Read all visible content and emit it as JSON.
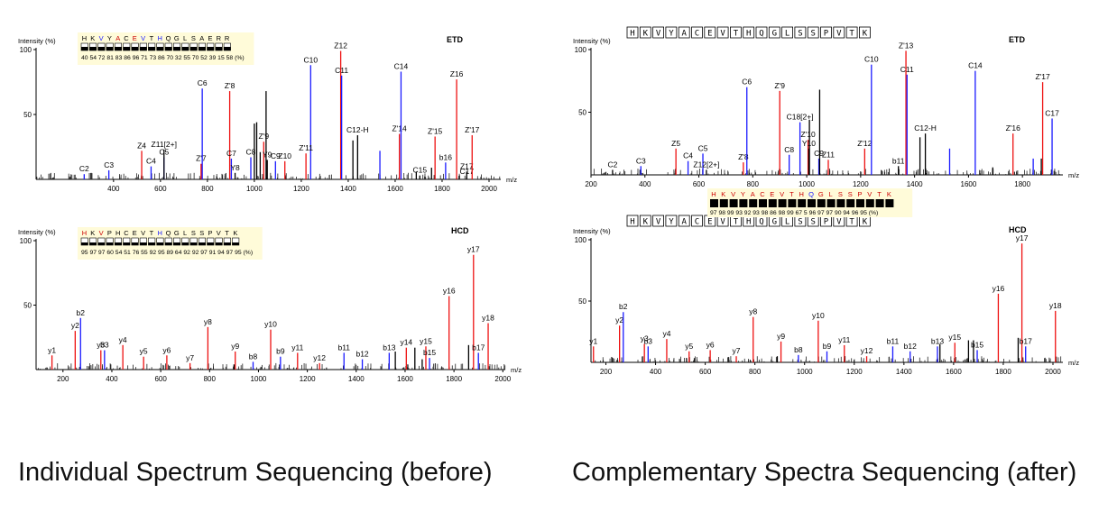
{
  "captions": {
    "left": "Individual Spectrum Sequencing (before)",
    "right": "Complementary Spectra Sequencing (after)"
  },
  "colors": {
    "c_ion": "#1a1aff",
    "z_ion": "#ee1111",
    "other": "#000000",
    "y_ion": "#ee1111",
    "b_ion": "#1a1aff"
  },
  "chart_data": [
    {
      "id": "before-etd",
      "type": "bar",
      "title": "ETD",
      "ylabel": "Intensity (%)",
      "xlabel": "m/z",
      "xlim": [
        70,
        2050
      ],
      "ylim": [
        0,
        100
      ],
      "xticks": [
        400,
        600,
        800,
        1000,
        1200,
        1400,
        1600,
        1800,
        2000
      ],
      "yticks": [
        50,
        100
      ],
      "sequence": {
        "residues": [
          "H",
          "K",
          "V",
          "Y",
          "A",
          "C",
          "E",
          "V",
          "T",
          "H",
          "Q",
          "G",
          "L",
          "S",
          "A",
          "E",
          "R",
          "R"
        ],
        "residue_colors": [
          "#000",
          "#000",
          "#1a1aff",
          "#000",
          "#cc0000",
          "#000",
          "#cc0000",
          "#1a1aff",
          "#000",
          "#1a1aff",
          "#000",
          "#000",
          "#000",
          "#000",
          "#000",
          "#000",
          "#000",
          "#000"
        ],
        "coverage": "40 54 72 81 83 86 96 71 73 86 70 32 55 70 52 39 15 58 (%)"
      },
      "peaks": [
        {
          "x": 275,
          "y": 4,
          "label": "C2",
          "kind": "c"
        },
        {
          "x": 380,
          "y": 7,
          "label": "C3",
          "kind": "c"
        },
        {
          "x": 520,
          "y": 22,
          "label": "Z4",
          "kind": "z"
        },
        {
          "x": 560,
          "y": 10,
          "label": "C4",
          "kind": "c"
        },
        {
          "x": 615,
          "y": 17,
          "label": "C5",
          "kind": "c"
        },
        {
          "x": 615,
          "y": 23,
          "label": "Z11[2+]",
          "kind": "o"
        },
        {
          "x": 773,
          "y": 12,
          "label": "Z'7",
          "kind": "z"
        },
        {
          "x": 778,
          "y": 70,
          "label": "C6",
          "kind": "c"
        },
        {
          "x": 895,
          "y": 68,
          "label": "Z'8",
          "kind": "z"
        },
        {
          "x": 902,
          "y": 16,
          "label": "C7",
          "kind": "c"
        },
        {
          "x": 918,
          "y": 5,
          "label": "Y8",
          "kind": "o"
        },
        {
          "x": 985,
          "y": 17,
          "label": "C8",
          "kind": "c"
        },
        {
          "x": 1040,
          "y": 29,
          "label": "Z'9",
          "kind": "z"
        },
        {
          "x": 1055,
          "y": 15,
          "label": "Y9",
          "kind": "o"
        },
        {
          "x": 1090,
          "y": 14,
          "label": "C9",
          "kind": "c"
        },
        {
          "x": 1130,
          "y": 14,
          "label": "Z10",
          "kind": "z"
        },
        {
          "x": 1240,
          "y": 88,
          "label": "C10",
          "kind": "c"
        },
        {
          "x": 1220,
          "y": 20,
          "label": "Z'11",
          "kind": "z"
        },
        {
          "x": 1368,
          "y": 99,
          "label": "Z12",
          "kind": "z"
        },
        {
          "x": 1372,
          "y": 80,
          "label": "C11",
          "kind": "c"
        },
        {
          "x": 1440,
          "y": 34,
          "label": "C12-H",
          "kind": "o"
        },
        {
          "x": 1535,
          "y": 22,
          "label": "",
          "kind": "c"
        },
        {
          "x": 1618,
          "y": 35,
          "label": "Z'14",
          "kind": "z"
        },
        {
          "x": 1625,
          "y": 83,
          "label": "C14",
          "kind": "c"
        },
        {
          "x": 1705,
          "y": 3,
          "label": "C15",
          "kind": "o"
        },
        {
          "x": 1770,
          "y": 33,
          "label": "Z'15",
          "kind": "z"
        },
        {
          "x": 1815,
          "y": 13,
          "label": "b16",
          "kind": "c"
        },
        {
          "x": 1862,
          "y": 77,
          "label": "Z16",
          "kind": "z"
        },
        {
          "x": 1905,
          "y": 6,
          "label": "Z17",
          "kind": "o"
        },
        {
          "x": 1905,
          "y": 2,
          "label": "C17",
          "kind": "o"
        },
        {
          "x": 1928,
          "y": 34,
          "label": "Z'17",
          "kind": "z"
        },
        {
          "x": 1050,
          "y": 68,
          "label": "",
          "kind": "o"
        },
        {
          "x": 1000,
          "y": 43,
          "label": "",
          "kind": "o"
        },
        {
          "x": 1010,
          "y": 44,
          "label": "",
          "kind": "o"
        },
        {
          "x": 1025,
          "y": 21,
          "label": "",
          "kind": "o"
        },
        {
          "x": 1420,
          "y": 30,
          "label": "",
          "kind": "o"
        },
        {
          "x": 1690,
          "y": 6,
          "label": "",
          "kind": "o"
        },
        {
          "x": 1755,
          "y": 9,
          "label": "",
          "kind": "o"
        }
      ]
    },
    {
      "id": "before-hcd",
      "type": "bar",
      "title": "HCD",
      "ylabel": "Intensity (%)",
      "xlabel": "m/z",
      "xlim": [
        90,
        2010
      ],
      "ylim": [
        0,
        100
      ],
      "xticks": [
        200,
        400,
        600,
        800,
        1000,
        1200,
        1400,
        1600,
        1800,
        2000
      ],
      "yticks": [
        50,
        100
      ],
      "sequence": {
        "residues": [
          "H",
          "K",
          "V",
          "P",
          "H",
          "C",
          "E",
          "V",
          "T",
          "H",
          "Q",
          "G",
          "L",
          "S",
          "S",
          "P",
          "V",
          "T",
          "K"
        ],
        "residue_colors": [
          "#cc0000",
          "#000",
          "#cc0000",
          "#000",
          "#000",
          "#000",
          "#000",
          "#000",
          "#000",
          "#1a1aff",
          "#000",
          "#000",
          "#000",
          "#000",
          "#000",
          "#000",
          "#000",
          "#000",
          "#000"
        ],
        "coverage": "95 97 97 60 54 51 76 55 92 95 89 64 92 92 97 91 94 97 95 (%)"
      },
      "peaks": [
        {
          "x": 155,
          "y": 11,
          "label": "y1",
          "kind": "z"
        },
        {
          "x": 250,
          "y": 30,
          "label": "y2",
          "kind": "z"
        },
        {
          "x": 272,
          "y": 40,
          "label": "b2",
          "kind": "c"
        },
        {
          "x": 355,
          "y": 15,
          "label": "y3",
          "kind": "z"
        },
        {
          "x": 370,
          "y": 15,
          "label": "b3",
          "kind": "c"
        },
        {
          "x": 445,
          "y": 19,
          "label": "y4",
          "kind": "z"
        },
        {
          "x": 530,
          "y": 10,
          "label": "y5",
          "kind": "z"
        },
        {
          "x": 625,
          "y": 11,
          "label": "y6",
          "kind": "z"
        },
        {
          "x": 720,
          "y": 5,
          "label": "y7",
          "kind": "z"
        },
        {
          "x": 793,
          "y": 33,
          "label": "y8",
          "kind": "z"
        },
        {
          "x": 905,
          "y": 14,
          "label": "y9",
          "kind": "z"
        },
        {
          "x": 978,
          "y": 6,
          "label": "b8",
          "kind": "c"
        },
        {
          "x": 1050,
          "y": 31,
          "label": "y10",
          "kind": "z"
        },
        {
          "x": 1090,
          "y": 10,
          "label": "b9",
          "kind": "c"
        },
        {
          "x": 1160,
          "y": 13,
          "label": "y11",
          "kind": "z"
        },
        {
          "x": 1250,
          "y": 5,
          "label": "y12",
          "kind": "z"
        },
        {
          "x": 1350,
          "y": 13,
          "label": "b11",
          "kind": "c"
        },
        {
          "x": 1425,
          "y": 8,
          "label": "b12",
          "kind": "c"
        },
        {
          "x": 1535,
          "y": 13,
          "label": "b13",
          "kind": "c"
        },
        {
          "x": 1605,
          "y": 17,
          "label": "y14",
          "kind": "z"
        },
        {
          "x": 1685,
          "y": 18,
          "label": "y15",
          "kind": "z"
        },
        {
          "x": 1700,
          "y": 9,
          "label": "b15",
          "kind": "c"
        },
        {
          "x": 1780,
          "y": 57,
          "label": "y16",
          "kind": "z"
        },
        {
          "x": 1880,
          "y": 89,
          "label": "y17",
          "kind": "z"
        },
        {
          "x": 1900,
          "y": 13,
          "label": "b17",
          "kind": "c"
        },
        {
          "x": 1940,
          "y": 36,
          "label": "y18",
          "kind": "z"
        },
        {
          "x": 1560,
          "y": 14,
          "label": "",
          "kind": "o"
        },
        {
          "x": 1640,
          "y": 17,
          "label": "",
          "kind": "o"
        },
        {
          "x": 1860,
          "y": 19,
          "label": "",
          "kind": "o"
        },
        {
          "x": 900,
          "y": 4,
          "label": "",
          "kind": "o"
        },
        {
          "x": 1670,
          "y": 8,
          "label": "",
          "kind": "o"
        }
      ]
    },
    {
      "id": "after-etd",
      "type": "bar",
      "title": "ETD",
      "ylabel": "Intensity (%)",
      "xlabel": "m/z",
      "xlim": [
        200,
        1950
      ],
      "ylim": [
        0,
        100
      ],
      "xticks": [
        200,
        400,
        600,
        800,
        1000,
        1200,
        1400,
        1600,
        1800
      ],
      "yticks": [
        50,
        100
      ],
      "sequence": {
        "residues": [
          "H",
          "K",
          "V",
          "Y",
          "A",
          "C",
          "E",
          "V",
          "T",
          "H",
          "Q",
          "G",
          "L",
          "S",
          "S",
          "P",
          "V",
          "T",
          "K"
        ]
      },
      "peaks": [
        {
          "x": 280,
          "y": 4,
          "label": "C2",
          "kind": "o"
        },
        {
          "x": 385,
          "y": 7,
          "label": "C3",
          "kind": "c"
        },
        {
          "x": 515,
          "y": 21,
          "label": "Z5",
          "kind": "z"
        },
        {
          "x": 560,
          "y": 11,
          "label": "C4",
          "kind": "c"
        },
        {
          "x": 615,
          "y": 17,
          "label": "C5",
          "kind": "c"
        },
        {
          "x": 628,
          "y": 4,
          "label": "Z12[2+]",
          "kind": "o"
        },
        {
          "x": 765,
          "y": 10,
          "label": "Z'8",
          "kind": "z"
        },
        {
          "x": 778,
          "y": 70,
          "label": "C6",
          "kind": "c"
        },
        {
          "x": 900,
          "y": 67,
          "label": "Z'9",
          "kind": "z"
        },
        {
          "x": 935,
          "y": 16,
          "label": "C8",
          "kind": "c"
        },
        {
          "x": 975,
          "y": 42,
          "label": "C18[2+]",
          "kind": "c"
        },
        {
          "x": 1005,
          "y": 28,
          "label": "Z'10",
          "kind": "z"
        },
        {
          "x": 1008,
          "y": 21,
          "label": "Y10",
          "kind": "o"
        },
        {
          "x": 1045,
          "y": 13,
          "label": "C9",
          "kind": "c"
        },
        {
          "x": 1080,
          "y": 12,
          "label": "Z11",
          "kind": "z"
        },
        {
          "x": 1215,
          "y": 21,
          "label": "Z'12",
          "kind": "z"
        },
        {
          "x": 1240,
          "y": 88,
          "label": "C10",
          "kind": "c"
        },
        {
          "x": 1340,
          "y": 7,
          "label": "b11",
          "kind": "o"
        },
        {
          "x": 1368,
          "y": 99,
          "label": "Z'13",
          "kind": "z"
        },
        {
          "x": 1372,
          "y": 80,
          "label": "C11",
          "kind": "c"
        },
        {
          "x": 1440,
          "y": 33,
          "label": "C12-H",
          "kind": "o"
        },
        {
          "x": 1530,
          "y": 21,
          "label": "",
          "kind": "c"
        },
        {
          "x": 1625,
          "y": 83,
          "label": "C14",
          "kind": "c"
        },
        {
          "x": 1765,
          "y": 33,
          "label": "Z'16",
          "kind": "z"
        },
        {
          "x": 1875,
          "y": 74,
          "label": "Z'17",
          "kind": "z"
        },
        {
          "x": 1910,
          "y": 45,
          "label": "C17",
          "kind": "c"
        },
        {
          "x": 1048,
          "y": 68,
          "label": "",
          "kind": "o"
        },
        {
          "x": 1010,
          "y": 44,
          "label": "",
          "kind": "o"
        },
        {
          "x": 1420,
          "y": 30,
          "label": "",
          "kind": "o"
        },
        {
          "x": 1690,
          "y": 6,
          "label": "",
          "kind": "o"
        },
        {
          "x": 1840,
          "y": 13,
          "label": "",
          "kind": "c"
        },
        {
          "x": 1870,
          "y": 13,
          "label": "",
          "kind": "o"
        }
      ]
    },
    {
      "id": "after-hcd",
      "type": "bar",
      "title": "HCD",
      "ylabel": "Intensity (%)",
      "xlabel": "m/z",
      "xlim": [
        140,
        2040
      ],
      "ylim": [
        0,
        100
      ],
      "xticks": [
        200,
        400,
        600,
        800,
        1000,
        1200,
        1400,
        1600,
        1800,
        2000
      ],
      "yticks": [
        50,
        100
      ],
      "sequence": {
        "residues": [
          "H",
          "K",
          "V",
          "Y",
          "A",
          "C",
          "E",
          "V",
          "T",
          "H",
          "Q",
          "G",
          "L",
          "S",
          "S",
          "P",
          "V",
          "T",
          "K"
        ],
        "residue_colors": [
          "#cc0000",
          "#cc0000",
          "#cc0000",
          "#cc0000",
          "#cc0000",
          "#cc0000",
          "#cc0000",
          "#cc0000",
          "#cc0000",
          "#cc0000",
          "#1a1aff",
          "#cc0000",
          "#cc0000",
          "#cc0000",
          "#cc0000",
          "#cc0000",
          "#cc0000",
          "#cc0000",
          "#cc0000"
        ],
        "coverage": "97 98 99 93 92 93 98 86 98 99 67 5 96 97 97 90 94 96 95 (%)"
      },
      "peaks": [
        {
          "x": 150,
          "y": 13,
          "label": "y1",
          "kind": "z"
        },
        {
          "x": 255,
          "y": 30,
          "label": "y2",
          "kind": "z"
        },
        {
          "x": 270,
          "y": 41,
          "label": "b2",
          "kind": "c"
        },
        {
          "x": 355,
          "y": 15,
          "label": "y3",
          "kind": "z"
        },
        {
          "x": 370,
          "y": 13,
          "label": "b3",
          "kind": "c"
        },
        {
          "x": 445,
          "y": 19,
          "label": "y4",
          "kind": "z"
        },
        {
          "x": 535,
          "y": 9,
          "label": "y5",
          "kind": "z"
        },
        {
          "x": 620,
          "y": 10,
          "label": "y6",
          "kind": "z"
        },
        {
          "x": 725,
          "y": 5,
          "label": "y7",
          "kind": "z"
        },
        {
          "x": 793,
          "y": 37,
          "label": "y8",
          "kind": "z"
        },
        {
          "x": 905,
          "y": 17,
          "label": "y9",
          "kind": "z"
        },
        {
          "x": 975,
          "y": 6,
          "label": "b8",
          "kind": "c"
        },
        {
          "x": 1055,
          "y": 34,
          "label": "y10",
          "kind": "z"
        },
        {
          "x": 1090,
          "y": 9,
          "label": "b9",
          "kind": "c"
        },
        {
          "x": 1160,
          "y": 14,
          "label": "y11",
          "kind": "z"
        },
        {
          "x": 1250,
          "y": 5,
          "label": "y12",
          "kind": "z"
        },
        {
          "x": 1355,
          "y": 13,
          "label": "b11",
          "kind": "c"
        },
        {
          "x": 1425,
          "y": 9,
          "label": "b12",
          "kind": "c"
        },
        {
          "x": 1535,
          "y": 13,
          "label": "b13",
          "kind": "c"
        },
        {
          "x": 1605,
          "y": 16,
          "label": "y15",
          "kind": "z"
        },
        {
          "x": 1695,
          "y": 10,
          "label": "b15",
          "kind": "c"
        },
        {
          "x": 1780,
          "y": 56,
          "label": "y16",
          "kind": "z"
        },
        {
          "x": 1875,
          "y": 97,
          "label": "y17",
          "kind": "z"
        },
        {
          "x": 1890,
          "y": 13,
          "label": "b17",
          "kind": "c"
        },
        {
          "x": 2010,
          "y": 42,
          "label": "y18",
          "kind": "z"
        },
        {
          "x": 1660,
          "y": 18,
          "label": "",
          "kind": "o"
        },
        {
          "x": 1680,
          "y": 18,
          "label": "",
          "kind": "o"
        },
        {
          "x": 1860,
          "y": 20,
          "label": "",
          "kind": "o"
        },
        {
          "x": 1545,
          "y": 15,
          "label": "",
          "kind": "o"
        },
        {
          "x": 890,
          "y": 5,
          "label": "",
          "kind": "o"
        }
      ]
    }
  ]
}
